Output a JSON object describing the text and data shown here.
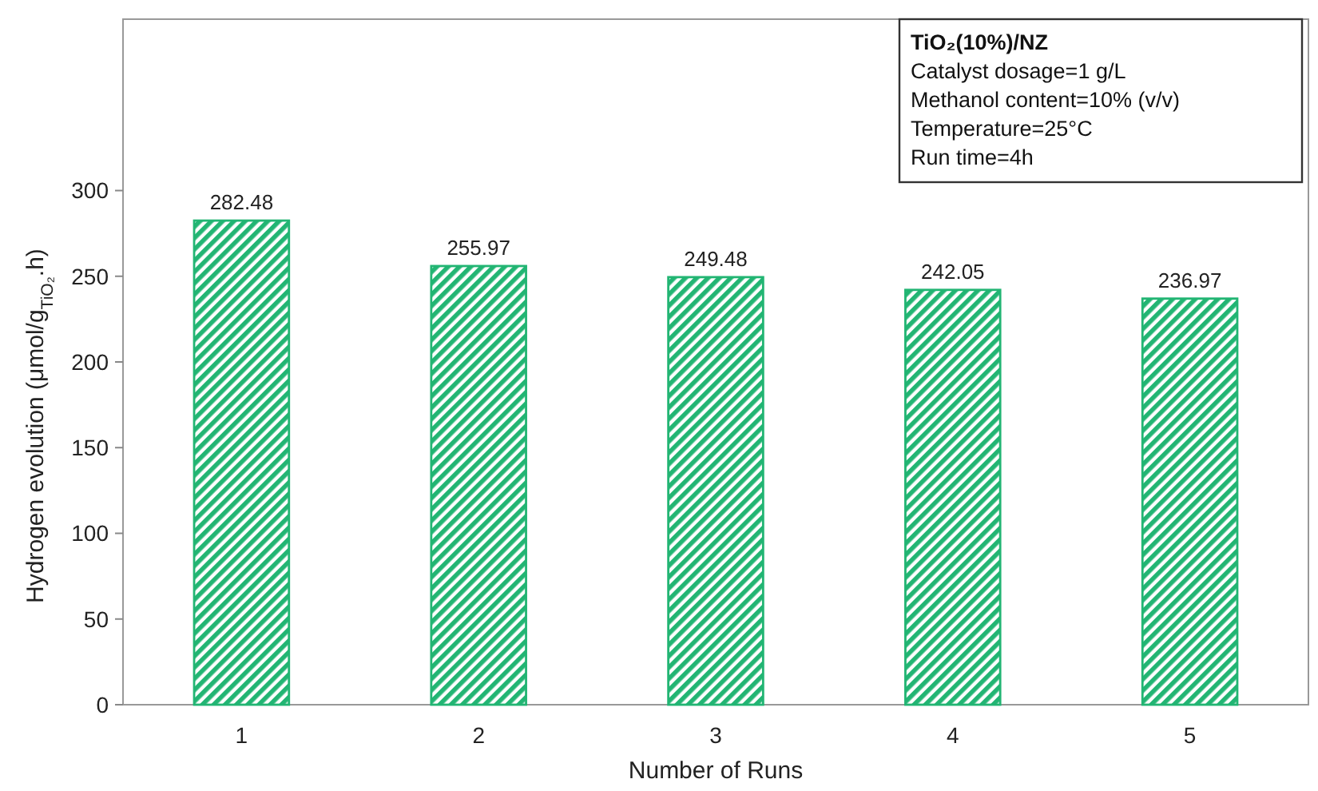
{
  "chart_data": {
    "type": "bar",
    "xlabel": "Number of Runs",
    "ylabel": "Hydrogen evolution (μmol/g$_{TiO₂}$.h)",
    "categories": [
      "1",
      "2",
      "3",
      "4",
      "5"
    ],
    "values": [
      282.48,
      255.97,
      249.48,
      242.05,
      236.97
    ],
    "color": "#22b573",
    "data_labels": true,
    "ylim": [
      0,
      400
    ],
    "yticks": [
      0,
      50,
      100,
      150,
      200,
      250,
      300
    ],
    "grid": false,
    "annotations": [
      "TiO₂(10%)/NZ",
      "Catalyst dosage=1 g/L",
      "Methanol content=10% (v/v)",
      "Temperature=25°C",
      "Run time=4h"
    ]
  }
}
